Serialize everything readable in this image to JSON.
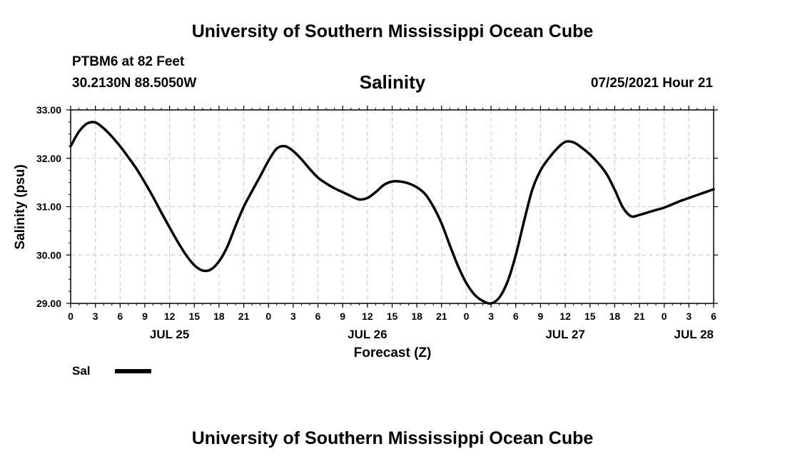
{
  "header": {
    "title": "University of Southern Mississippi Ocean Cube",
    "station": "PTBM6 at 82 Feet",
    "coords": "30.2130N  88.5050W",
    "forecast_time": "07/25/2021 Hour 21"
  },
  "footer": {
    "title": "University of Southern Mississippi Ocean Cube"
  },
  "chart_data": {
    "type": "line",
    "title": "Salinity",
    "xlabel": "Forecast (Z)",
    "ylabel": "Salinity (psu)",
    "ylim": [
      29.0,
      33.0
    ],
    "yticks": [
      "29.00",
      "30.00",
      "31.00",
      "32.00",
      "33.00"
    ],
    "x_range_hours": [
      0,
      78
    ],
    "x_tick_labels": [
      "0",
      "3",
      "6",
      "9",
      "12",
      "15",
      "18",
      "21",
      "0",
      "3",
      "6",
      "9",
      "12",
      "15",
      "18",
      "21",
      "0",
      "3",
      "6",
      "9",
      "12",
      "15",
      "18",
      "21",
      "0",
      "3",
      "6"
    ],
    "day_labels": [
      {
        "label": "JUL 25",
        "hour": 12
      },
      {
        "label": "JUL 26",
        "hour": 36
      },
      {
        "label": "JUL 27",
        "hour": 60
      },
      {
        "label": "JUL 28",
        "hour": 78
      }
    ],
    "grid": true,
    "legend": [
      {
        "name": "Sal",
        "color": "#000000"
      }
    ],
    "series": [
      {
        "name": "Sal",
        "x": [
          0,
          1,
          2,
          3,
          4,
          5,
          6,
          7,
          8,
          9,
          10,
          11,
          12,
          13,
          14,
          15,
          16,
          17,
          18,
          19,
          20,
          21,
          22,
          23,
          24,
          25,
          26,
          27,
          28,
          29,
          30,
          31,
          32,
          33,
          34,
          35,
          36,
          37,
          38,
          39,
          40,
          41,
          42,
          43,
          44,
          45,
          46,
          47,
          48,
          49,
          50,
          51,
          52,
          53,
          54,
          55,
          56,
          57,
          58,
          59,
          60,
          61,
          62,
          63,
          64,
          65,
          66,
          67,
          68,
          69,
          70,
          71,
          72,
          73,
          74,
          75,
          76,
          77,
          78
        ],
        "values": [
          32.25,
          32.55,
          32.72,
          32.74,
          32.62,
          32.45,
          32.25,
          32.02,
          31.78,
          31.5,
          31.2,
          30.88,
          30.57,
          30.27,
          30.0,
          29.79,
          29.68,
          29.7,
          29.87,
          30.17,
          30.6,
          31.0,
          31.32,
          31.63,
          31.95,
          32.2,
          32.25,
          32.15,
          31.98,
          31.78,
          31.6,
          31.48,
          31.38,
          31.3,
          31.22,
          31.15,
          31.18,
          31.3,
          31.45,
          31.52,
          31.52,
          31.48,
          31.4,
          31.26,
          31.0,
          30.65,
          30.2,
          29.77,
          29.42,
          29.18,
          29.05,
          29.0,
          29.12,
          29.45,
          30.0,
          30.7,
          31.35,
          31.75,
          32.0,
          32.2,
          32.34,
          32.33,
          32.22,
          32.08,
          31.9,
          31.68,
          31.35,
          30.98,
          30.8,
          30.83,
          30.88,
          30.93,
          30.98,
          31.05,
          31.12,
          31.18,
          31.24,
          31.3,
          31.36
        ]
      }
    ]
  }
}
